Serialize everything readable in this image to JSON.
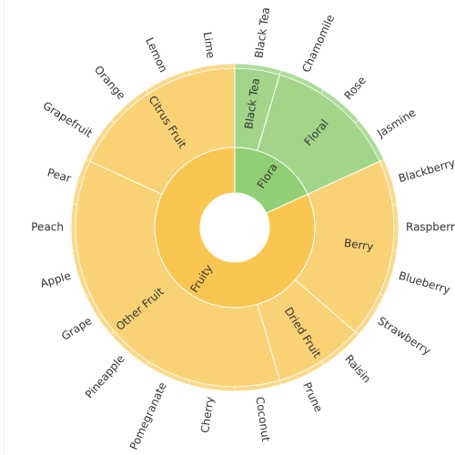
{
  "chart_data": {
    "type": "sunburst",
    "start_angle_deg": 0,
    "colors": {
      "Fruity": "#f9c751",
      "Flora": "#91cf74",
      "fruity_light": "#f9d275",
      "flora_light": "#a2d58a",
      "fruity_outer": "#fad98c",
      "flora_outer": "#aedc9a",
      "stroke": "#ffffff"
    },
    "tree": [
      {
        "name": "Flora",
        "color_key": "flora",
        "children": [
          {
            "name": "Black Tea",
            "value": 1
          },
          {
            "name": "Floral",
            "children": [
              {
                "name": "Chamomile",
                "value": 1
              },
              {
                "name": "Rose",
                "value": 1
              },
              {
                "name": "Jasmine",
                "value": 1
              }
            ]
          }
        ]
      },
      {
        "name": "Fruity",
        "color_key": "fruity",
        "children": [
          {
            "name": "Berry",
            "children": [
              {
                "name": "Blackberry",
                "value": 1
              },
              {
                "name": "Raspberry",
                "value": 1
              },
              {
                "name": "Blueberry",
                "value": 1
              },
              {
                "name": "Strawberry",
                "value": 1
              }
            ]
          },
          {
            "name": "Dried Fruit",
            "children": [
              {
                "name": "Raisin",
                "value": 1
              },
              {
                "name": "Prune",
                "value": 1
              }
            ]
          },
          {
            "name": "Other Fruit",
            "children": [
              {
                "name": "Coconut",
                "value": 1
              },
              {
                "name": "Cherry",
                "value": 1
              },
              {
                "name": "Pomegranate",
                "value": 1
              },
              {
                "name": "Pineapple",
                "value": 1
              },
              {
                "name": "Grape",
                "value": 1
              },
              {
                "name": "Apple",
                "value": 1
              },
              {
                "name": "Peach",
                "value": 1
              },
              {
                "name": "Pear",
                "value": 1
              }
            ]
          },
          {
            "name": "Citrus Fruit",
            "children": [
              {
                "name": "Grapefruit",
                "value": 1
              },
              {
                "name": "Orange",
                "value": 1
              },
              {
                "name": "Lemon",
                "value": 1
              },
              {
                "name": "Lime",
                "value": 1
              }
            ]
          }
        ]
      }
    ]
  }
}
